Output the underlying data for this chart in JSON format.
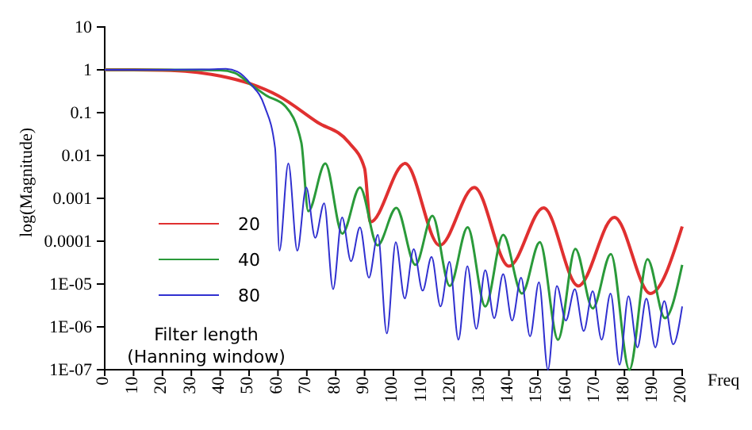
{
  "chart_data": {
    "type": "line",
    "xlabel": "Freq",
    "ylabel": "log(Magnitude)",
    "legend_title": "Filter length\n(Hanning window)",
    "log": "y",
    "grid": false,
    "legend": "bottom left",
    "marker": "none",
    "line_style": "solid",
    "xlim": [
      0,
      200
    ],
    "xticks": [
      0,
      10,
      20,
      30,
      40,
      50,
      60,
      70,
      80,
      90,
      100,
      110,
      120,
      130,
      140,
      150,
      160,
      170,
      180,
      190,
      200
    ],
    "ylim": [
      1e-07,
      10
    ],
    "yticks": [
      10,
      1,
      0.1,
      0.01,
      0.001,
      0.0001,
      {
        "value": 1e-05,
        "label": "1E-05"
      },
      {
        "value": 1e-06,
        "label": "1E-06"
      },
      {
        "value": 1e-07,
        "label": "1E-07"
      }
    ],
    "series": [
      {
        "name": "20",
        "color": "#e03030",
        "x": [
          0,
          10,
          20,
          30,
          40,
          50.5,
          60,
          73.6,
          84.6,
          90,
          92,
          104,
          116,
          128,
          140,
          152,
          164,
          176.5,
          189,
          200
        ],
        "values": [
          1,
          1,
          0.98,
          0.9,
          0.72,
          0.47,
          0.25,
          0.06,
          0.02,
          0.005,
          0.00028,
          0.0065,
          8e-05,
          0.0018,
          2.6e-05,
          0.0006,
          9e-06,
          0.00036,
          6e-06,
          0.00022
        ]
      },
      {
        "name": "40",
        "color": "#2a9a3a",
        "x": [
          0,
          20,
          40,
          45,
          50.5,
          56,
          62.6,
          68.1,
          70.5,
          76.4,
          82.3,
          88.4,
          94.5,
          101,
          107.6,
          113.5,
          119.5,
          125.7,
          131.8,
          138,
          144.5,
          150.7,
          157,
          163,
          169,
          175.3,
          181.7,
          188,
          194,
          200
        ],
        "values": [
          1,
          1,
          0.98,
          0.85,
          0.46,
          0.25,
          0.14,
          0.02,
          0.0005,
          0.0065,
          0.00015,
          0.0018,
          8e-05,
          0.0006,
          2.8e-05,
          0.00039,
          9e-06,
          0.00021,
          3e-06,
          0.00014,
          6e-06,
          9.5e-05,
          5e-07,
          6.6e-05,
          2.7e-06,
          5e-05,
          1e-07,
          3.8e-05,
          1.6e-06,
          2.8e-05
        ]
      },
      {
        "name": "80",
        "color": "#3030d0",
        "x": [
          0,
          20,
          35,
          42,
          46,
          50.5,
          55.4,
          59,
          60.5,
          63.6,
          66.7,
          69.8,
          72.9,
          76,
          79.1,
          82.2,
          85.3,
          88.4,
          91.5,
          94.6,
          97.7,
          100.8,
          103.9,
          107,
          110.1,
          113.2,
          116.3,
          119.4,
          122.5,
          125.6,
          128.7,
          131.8,
          134.9,
          138,
          141.1,
          144.2,
          147.3,
          150.4,
          153.5,
          156.6,
          159.7,
          162.8,
          165.9,
          169,
          172.1,
          175.2,
          178.3,
          181.4,
          184.5,
          187.6,
          190.7,
          193.8,
          196.9,
          200
        ],
        "values": [
          1,
          1,
          1.02,
          1.05,
          0.9,
          0.47,
          0.14,
          0.015,
          6e-05,
          0.0065,
          6e-05,
          0.0018,
          0.00012,
          0.00077,
          7.6e-06,
          0.00036,
          3.4e-05,
          0.00021,
          1.4e-05,
          0.00014,
          7e-07,
          9.5e-05,
          4.6e-06,
          6.5e-05,
          7e-06,
          4.3e-05,
          3e-06,
          3.3e-05,
          5e-07,
          2.6e-05,
          9e-07,
          2.1e-05,
          1.6e-06,
          1.7e-05,
          1.4e-06,
          1.4e-05,
          6e-07,
          1.1e-05,
          1e-07,
          9e-06,
          1.4e-06,
          7.6e-06,
          8e-07,
          6.8e-06,
          5e-07,
          6e-06,
          1.3e-07,
          5.2e-06,
          3.3e-07,
          4.6e-06,
          3.3e-07,
          4e-06,
          3.9e-07,
          3e-06
        ]
      }
    ]
  }
}
